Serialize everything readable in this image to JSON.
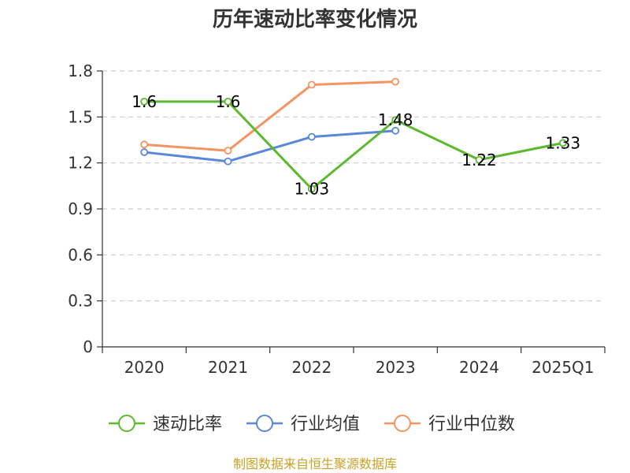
{
  "chart_data": {
    "type": "line",
    "title": "历年速动比率变化情况",
    "categories": [
      "2020",
      "2021",
      "2022",
      "2023",
      "2024",
      "2025Q1"
    ],
    "ylim": [
      0,
      1.8
    ],
    "yticks": [
      "0",
      "0.3",
      "0.6",
      "0.9",
      "1.2",
      "1.5",
      "1.8"
    ],
    "grid": true,
    "legend_position": "bottom",
    "series": [
      {
        "name": "速动比率",
        "color": "#5cb82e",
        "values": [
          1.6,
          1.6,
          1.03,
          1.48,
          1.22,
          1.33
        ],
        "labels": [
          "1.6",
          "1.6",
          "1.03",
          "1.48",
          "1.22",
          "1.33"
        ]
      },
      {
        "name": "行业均值",
        "color": "#5b87d8",
        "values": [
          1.27,
          1.21,
          1.37,
          1.41,
          null,
          null
        ]
      },
      {
        "name": "行业中位数",
        "color": "#f39461",
        "values": [
          1.32,
          1.28,
          1.71,
          1.73,
          null,
          null
        ]
      }
    ]
  },
  "source": "制图数据来自恒生聚源数据库"
}
